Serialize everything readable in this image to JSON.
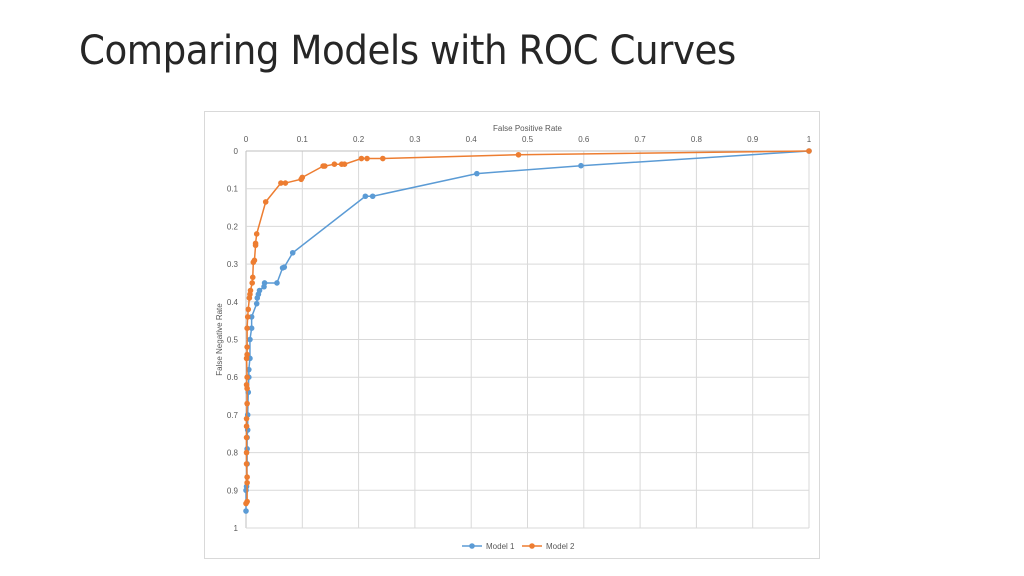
{
  "slide": {
    "title": "Comparing Models with ROC Curves"
  },
  "chart_data": {
    "type": "line",
    "title": "",
    "xlabel": "False Positive Rate",
    "ylabel": "False Negative Rate",
    "xlim": [
      0,
      1
    ],
    "ylim": [
      0,
      1
    ],
    "y_inverted": true,
    "x_axis_position": "top",
    "grid": true,
    "legend": "bottom",
    "xticks": [
      "0",
      "0.1",
      "0.2",
      "0.3",
      "0.4",
      "0.5",
      "0.6",
      "0.7",
      "0.8",
      "0.9",
      "1"
    ],
    "yticks": [
      "0",
      "0.1",
      "0.2",
      "0.3",
      "0.4",
      "0.5",
      "0.6",
      "0.7",
      "0.8",
      "0.9",
      "1"
    ],
    "series": [
      {
        "name": "Model 1",
        "color": "#5b9bd5",
        "points": [
          [
            1,
            0
          ],
          [
            0.595,
            0.039
          ],
          [
            0.41,
            0.06
          ],
          [
            0.225,
            0.12
          ],
          [
            0.212,
            0.12
          ],
          [
            0.083,
            0.27
          ],
          [
            0.068,
            0.308
          ],
          [
            0.065,
            0.31
          ],
          [
            0.055,
            0.35
          ],
          [
            0.033,
            0.35
          ],
          [
            0.032,
            0.36
          ],
          [
            0.024,
            0.37
          ],
          [
            0.022,
            0.38
          ],
          [
            0.02,
            0.39
          ],
          [
            0.019,
            0.405
          ],
          [
            0.01,
            0.44
          ],
          [
            0.01,
            0.47
          ],
          [
            0.007,
            0.5
          ],
          [
            0.007,
            0.55
          ],
          [
            0.005,
            0.58
          ],
          [
            0.005,
            0.6
          ],
          [
            0.004,
            0.64
          ],
          [
            0.003,
            0.7
          ],
          [
            0.003,
            0.74
          ],
          [
            0.002,
            0.76
          ],
          [
            0.002,
            0.79
          ],
          [
            0.002,
            0.83
          ],
          [
            0.001,
            0.89
          ],
          [
            0.0,
            0.9
          ],
          [
            0.0,
            0.955
          ]
        ]
      },
      {
        "name": "Model 2",
        "color": "#ed7d31",
        "points": [
          [
            1,
            0
          ],
          [
            0.484,
            0.01
          ],
          [
            0.243,
            0.02
          ],
          [
            0.215,
            0.02
          ],
          [
            0.205,
            0.02
          ],
          [
            0.175,
            0.035
          ],
          [
            0.17,
            0.035
          ],
          [
            0.157,
            0.035
          ],
          [
            0.14,
            0.04
          ],
          [
            0.137,
            0.04
          ],
          [
            0.1,
            0.07
          ],
          [
            0.098,
            0.075
          ],
          [
            0.07,
            0.085
          ],
          [
            0.062,
            0.085
          ],
          [
            0.035,
            0.135
          ],
          [
            0.019,
            0.22
          ],
          [
            0.017,
            0.245
          ],
          [
            0.017,
            0.25
          ],
          [
            0.015,
            0.29
          ],
          [
            0.013,
            0.295
          ],
          [
            0.012,
            0.335
          ],
          [
            0.011,
            0.35
          ],
          [
            0.008,
            0.37
          ],
          [
            0.007,
            0.38
          ],
          [
            0.006,
            0.39
          ],
          [
            0.004,
            0.42
          ],
          [
            0.003,
            0.44
          ],
          [
            0.002,
            0.47
          ],
          [
            0.002,
            0.52
          ],
          [
            0.002,
            0.54
          ],
          [
            0.001,
            0.55
          ],
          [
            0.002,
            0.6
          ],
          [
            0.001,
            0.62
          ],
          [
            0.002,
            0.63
          ],
          [
            0.002,
            0.67
          ],
          [
            0.001,
            0.71
          ],
          [
            0.001,
            0.73
          ],
          [
            0.001,
            0.76
          ],
          [
            0.001,
            0.8
          ],
          [
            0.001,
            0.83
          ],
          [
            0.002,
            0.865
          ],
          [
            0.002,
            0.88
          ],
          [
            0.002,
            0.93
          ],
          [
            0.0,
            0.935
          ]
        ]
      }
    ]
  }
}
